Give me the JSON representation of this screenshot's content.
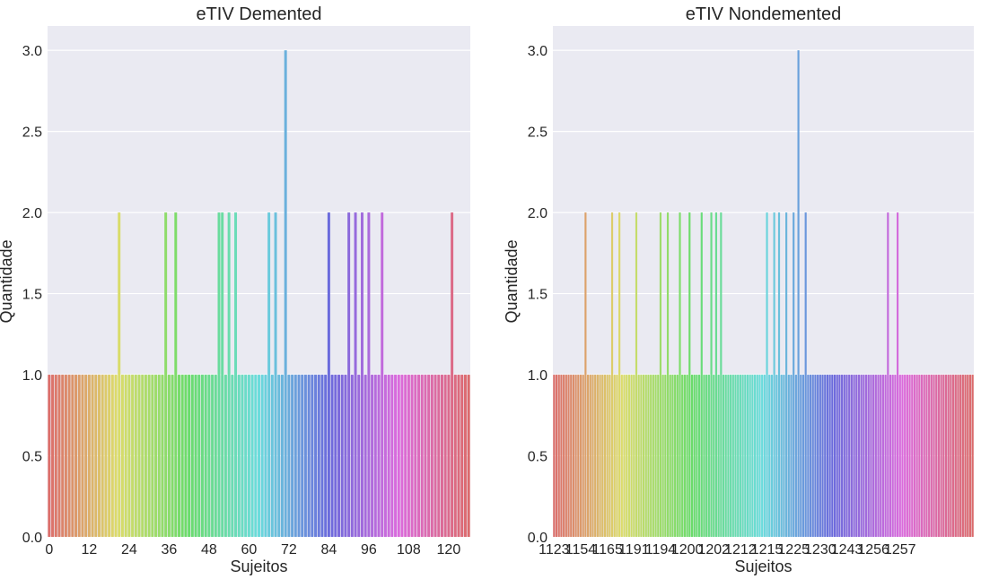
{
  "chart_data": [
    {
      "type": "bar",
      "title": "eTIV Demented",
      "xlabel": "Sujeitos",
      "ylabel": "Quantidade",
      "ylim": [
        0,
        3.15
      ],
      "yticks": [
        "0.0",
        "0.5",
        "1.0",
        "1.5",
        "2.0",
        "2.5",
        "3.0"
      ],
      "xticks": [
        "0",
        "12",
        "24",
        "36",
        "48",
        "60",
        "72",
        "84",
        "96",
        "108",
        "120"
      ],
      "grid": true,
      "palette": "husl",
      "category_count": 127,
      "values": [
        1,
        1,
        1,
        1,
        1,
        1,
        1,
        1,
        1,
        1,
        1,
        1,
        1,
        1,
        1,
        1,
        1,
        1,
        1,
        1,
        1,
        2,
        1,
        1,
        1,
        1,
        1,
        1,
        1,
        1,
        1,
        1,
        1,
        1,
        1,
        2,
        1,
        1,
        2,
        1,
        1,
        1,
        1,
        1,
        1,
        1,
        1,
        1,
        1,
        1,
        1,
        2,
        2,
        1,
        2,
        1,
        2,
        1,
        1,
        1,
        1,
        1,
        1,
        1,
        1,
        1,
        2,
        1,
        2,
        1,
        1,
        3,
        1,
        1,
        1,
        1,
        1,
        1,
        1,
        1,
        1,
        1,
        1,
        1,
        2,
        1,
        1,
        1,
        1,
        1,
        2,
        1,
        2,
        1,
        2,
        1,
        2,
        1,
        1,
        1,
        2,
        1,
        1,
        1,
        1,
        1,
        1,
        1,
        1,
        1,
        1,
        1,
        1,
        1,
        1,
        1,
        1,
        1,
        1,
        1,
        1,
        2,
        1,
        1,
        1,
        1,
        1
      ]
    },
    {
      "type": "bar",
      "title": "eTIV Nondemented",
      "xlabel": "Sujeitos",
      "ylabel": "Quantidade",
      "ylim": [
        0,
        3.15
      ],
      "yticks": [
        "0.0",
        "0.5",
        "1.0",
        "1.5",
        "2.0",
        "2.5",
        "3.0"
      ],
      "xticks": [
        "1123",
        "1154",
        "1165",
        "1191",
        "1194",
        "1200",
        "1202",
        "1212",
        "1215",
        "1225",
        "1230",
        "1243",
        "1256",
        "1257"
      ],
      "grid": true,
      "palette": "husl",
      "category_count": 168,
      "values": [
        1,
        1,
        1,
        1,
        1,
        1,
        1,
        1,
        1,
        1,
        1,
        1,
        1,
        2,
        1,
        1,
        1,
        1,
        1,
        1,
        1,
        1,
        1,
        1,
        2,
        1,
        1,
        2,
        1,
        1,
        1,
        1,
        1,
        1,
        2,
        1,
        1,
        1,
        1,
        1,
        1,
        1,
        1,
        1,
        2,
        1,
        1,
        2,
        1,
        1,
        1,
        1,
        2,
        1,
        1,
        1,
        2,
        1,
        1,
        1,
        1,
        2,
        1,
        1,
        1,
        2,
        1,
        2,
        1,
        2,
        1,
        1,
        1,
        1,
        1,
        1,
        1,
        1,
        1,
        1,
        1,
        1,
        1,
        1,
        1,
        1,
        1,
        1,
        2,
        1,
        1,
        2,
        1,
        2,
        1,
        1,
        2,
        1,
        1,
        2,
        1,
        3,
        1,
        1,
        2,
        1,
        1,
        1,
        1,
        1,
        1,
        1,
        1,
        1,
        1,
        1,
        1,
        1,
        1,
        1,
        1,
        1,
        1,
        1,
        1,
        1,
        1,
        1,
        1,
        1,
        1,
        1,
        1,
        1,
        1,
        1,
        1,
        1,
        2,
        1,
        1,
        1,
        2,
        1,
        1,
        1,
        1,
        1,
        1,
        1,
        1,
        1,
        1,
        1,
        1,
        1,
        1,
        1,
        1,
        1,
        1,
        1,
        1,
        1,
        1,
        1,
        1,
        1,
        1,
        1,
        1,
        1,
        1,
        1
      ]
    }
  ]
}
